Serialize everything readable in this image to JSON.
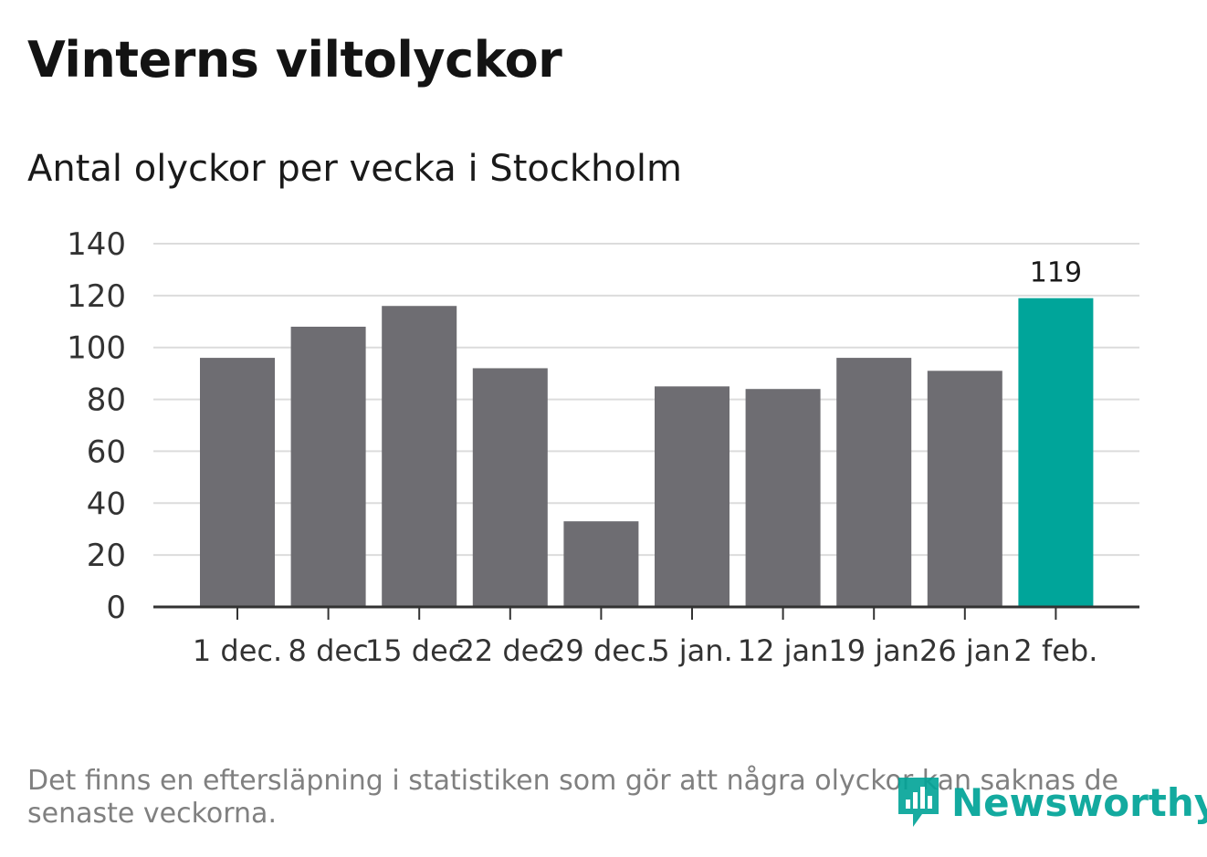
{
  "header": {
    "title": "Vinterns viltolyckor",
    "subtitle": "Antal olyckor per vecka i Stockholm"
  },
  "footer": {
    "note": "Det finns en eftersläpning i statistiken som gör att några olyckor kan saknas de senaste veckorna.",
    "brand_name": "Newsworthy",
    "brand_icon": "newsworthy-logo-icon"
  },
  "colors": {
    "bar": "#6e6d72",
    "highlight": "#00a59a",
    "grid": "#dcdcdc",
    "axis": "#333333",
    "brand": "#00a397"
  },
  "chart_data": {
    "type": "bar",
    "categories": [
      "1 dec.",
      "8 dec",
      "15 dec.",
      "22 dec.",
      "29 dec.",
      "5 jan.",
      "12 jan",
      "19 jan",
      "26 jan",
      "2 feb."
    ],
    "values": [
      96,
      108,
      116,
      92,
      33,
      85,
      84,
      96,
      91,
      119
    ],
    "highlight_index": 9,
    "data_labels": [
      {
        "index": 9,
        "text": "119"
      }
    ],
    "yticks": [
      0,
      20,
      40,
      60,
      80,
      100,
      120,
      140
    ],
    "ylim": [
      0,
      140
    ],
    "grid": true,
    "legend": "none"
  }
}
